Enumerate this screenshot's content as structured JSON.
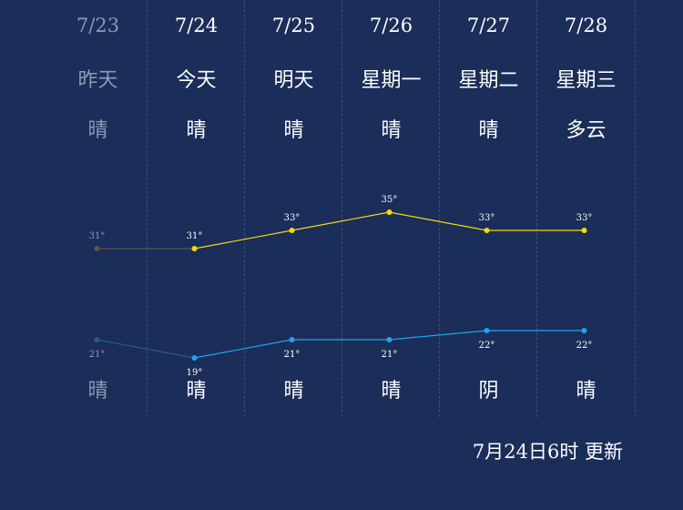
{
  "days": [
    {
      "date": "7/23",
      "name": "昨天",
      "day_weather": "晴",
      "night_weather": "晴",
      "past": true
    },
    {
      "date": "7/24",
      "name": "今天",
      "day_weather": "晴",
      "night_weather": "晴",
      "past": false
    },
    {
      "date": "7/25",
      "name": "明天",
      "day_weather": "晴",
      "night_weather": "晴",
      "past": false
    },
    {
      "date": "7/26",
      "name": "星期一",
      "day_weather": "晴",
      "night_weather": "晴",
      "past": false
    },
    {
      "date": "7/27",
      "name": "星期二",
      "day_weather": "晴",
      "night_weather": "阴",
      "past": false
    },
    {
      "date": "7/28",
      "name": "星期三",
      "day_weather": "多云",
      "night_weather": "晴",
      "past": false
    }
  ],
  "chart_data": {
    "type": "line",
    "categories": [
      "7/23",
      "7/24",
      "7/25",
      "7/26",
      "7/27",
      "7/28"
    ],
    "series": [
      {
        "values": [
          31,
          31,
          33,
          35,
          33,
          33
        ],
        "labels": [
          "31°",
          "31°",
          "33°",
          "35°",
          "33°",
          "33°"
        ],
        "color": "#f5d90a",
        "past_color": "#5a5a4a"
      },
      {
        "values": [
          21,
          19,
          21,
          21,
          22,
          22
        ],
        "labels": [
          "21°",
          "19°",
          "21°",
          "21°",
          "22°",
          "22°"
        ],
        "color": "#1ea5ee",
        "past_color": "#2a5a8a"
      }
    ]
  },
  "footer": {
    "updated": "7月24日6时 更新"
  }
}
